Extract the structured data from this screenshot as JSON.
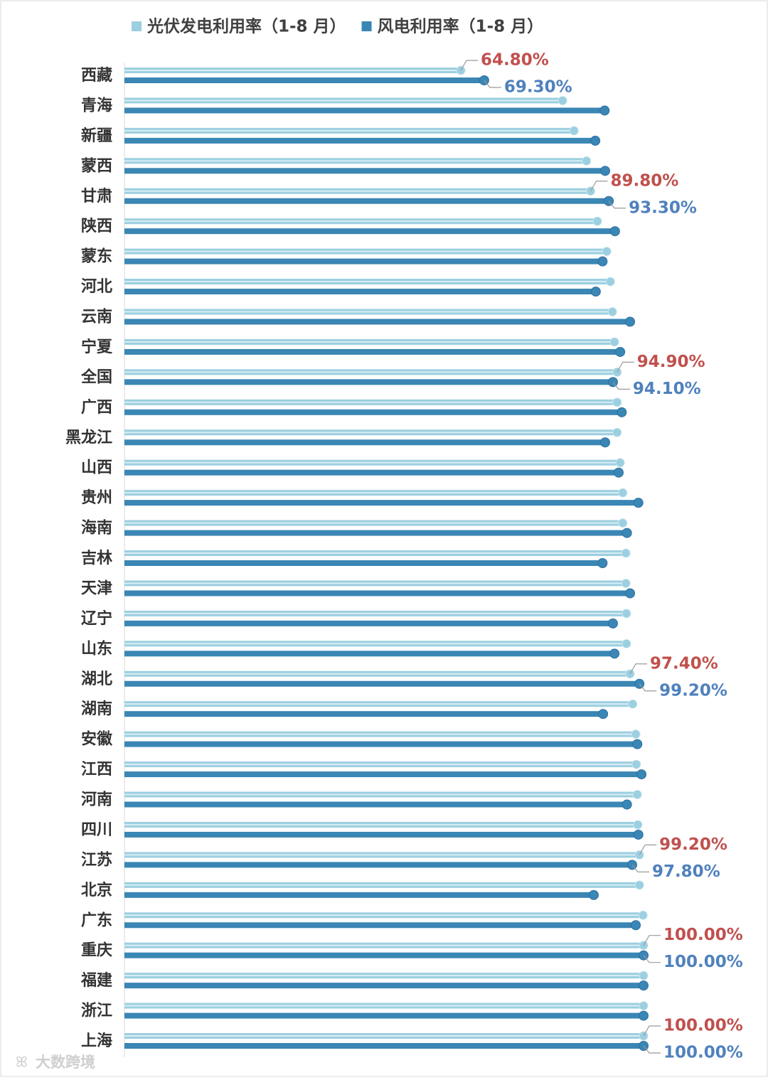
{
  "chart_data": {
    "type": "lollipop-hbar",
    "watermark": "大数跨境",
    "categories": [
      "西藏",
      "青海",
      "新疆",
      "蒙西",
      "甘肃",
      "陕西",
      "蒙东",
      "河北",
      "云南",
      "宁夏",
      "全国",
      "广西",
      "黑龙江",
      "山西",
      "贵州",
      "海南",
      "吉林",
      "天津",
      "辽宁",
      "山东",
      "湖北",
      "湖南",
      "安徽",
      "江西",
      "河南",
      "四川",
      "江苏",
      "北京",
      "广东",
      "重庆",
      "福建",
      "浙江",
      "上海"
    ],
    "xlim": [
      0,
      100
    ],
    "legend": "top",
    "series": [
      {
        "name": "光伏发电利用率（1-8 月）",
        "color": "#9ccfe0",
        "label_color": "#c0504d",
        "values": [
          64.8,
          84.4,
          86.6,
          89.0,
          89.8,
          91.1,
          92.9,
          93.6,
          94.0,
          94.4,
          94.9,
          94.9,
          94.9,
          95.5,
          96.0,
          96.0,
          96.6,
          96.6,
          96.7,
          96.7,
          97.4,
          97.9,
          98.5,
          98.6,
          98.8,
          98.9,
          99.2,
          99.2,
          99.9,
          100,
          100,
          100,
          100
        ],
        "value_labels": [
          "64.80%",
          null,
          null,
          null,
          "89.80%",
          null,
          null,
          null,
          null,
          null,
          "94.90%",
          null,
          null,
          null,
          null,
          null,
          null,
          null,
          null,
          null,
          "97.40%",
          null,
          null,
          null,
          null,
          null,
          "99.20%",
          null,
          null,
          "100.00%",
          null,
          null,
          "100.00%"
        ]
      },
      {
        "name": "风电利用率（1-8 月）",
        "color": "#3a86b4",
        "label_color": "#4f81bd",
        "values": [
          69.3,
          92.5,
          90.7,
          92.6,
          93.3,
          94.5,
          92.1,
          90.8,
          97.4,
          95.5,
          94.1,
          95.8,
          92.6,
          95.2,
          99.0,
          96.8,
          92.1,
          97.4,
          94.1,
          94.4,
          99.2,
          92.2,
          98.8,
          99.6,
          96.8,
          99.0,
          97.8,
          90.4,
          98.5,
          100,
          100,
          100,
          100
        ],
        "value_labels": [
          "69.30%",
          null,
          null,
          null,
          "93.30%",
          null,
          null,
          null,
          null,
          null,
          "94.10%",
          null,
          null,
          null,
          null,
          null,
          null,
          null,
          null,
          null,
          "99.20%",
          null,
          null,
          null,
          null,
          null,
          "97.80%",
          null,
          null,
          "100.00%",
          null,
          null,
          "100.00%"
        ]
      }
    ]
  }
}
